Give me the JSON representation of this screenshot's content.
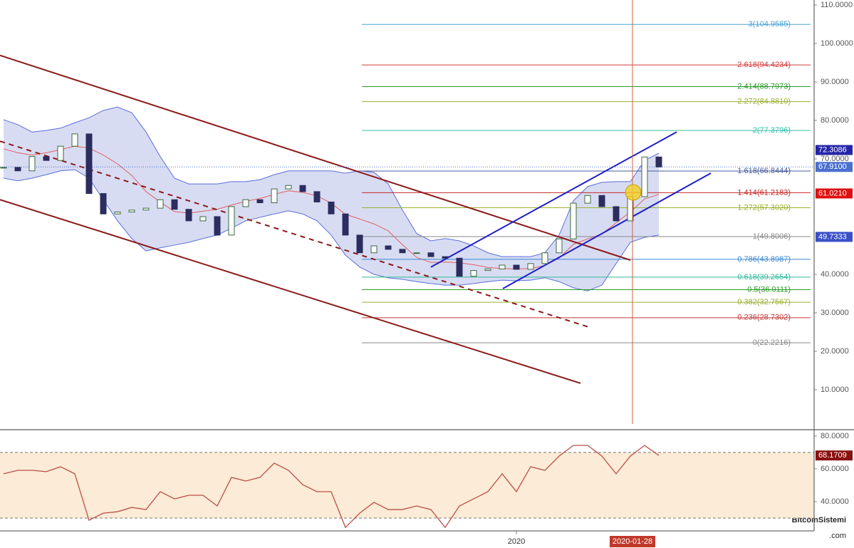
{
  "chart_data": [
    {
      "type": "candlestick",
      "xlim": [
        -0.25,
        56.9
      ],
      "xticks": [
        {
          "value": 36,
          "label": "2020"
        },
        {
          "value": 44.15,
          "label": "2020-01-28"
        }
      ],
      "ylim": [
        1.1,
        111.3
      ],
      "yticks": [
        {
          "value": 110,
          "label": "110.0000"
        },
        {
          "value": 100,
          "label": "100.0000"
        },
        {
          "value": 90,
          "label": "90.0000"
        },
        {
          "value": 80,
          "label": "80.0000"
        },
        {
          "value": 70,
          "label": "70.0000"
        },
        {
          "value": 40,
          "label": "40.0000"
        },
        {
          "value": 30,
          "label": "30.0000"
        },
        {
          "value": 20,
          "label": "20.0000"
        },
        {
          "value": 10,
          "label": "10.0000"
        }
      ],
      "up_color": "#ffffff",
      "down_color": "#2b2d5e",
      "candle_edge": "#3a6a3a",
      "closes": [
        67.8,
        66.9,
        70.6,
        69.6,
        73.3,
        76.5,
        61,
        55.7,
        56.2,
        56.7,
        57.2,
        59.4,
        56.9,
        53.9,
        55,
        50.2,
        57.6,
        59.4,
        58.6,
        62.2,
        63.1,
        61.5,
        58.8,
        55.7,
        50.2,
        45.6,
        47.4,
        46.5,
        45.6,
        45.6,
        44.6,
        44.2,
        39.5,
        41,
        41.4,
        42.4,
        41.3,
        42.8,
        45.6,
        49.2,
        58.5,
        60.5,
        57.6,
        53.9,
        60.2,
        70.5,
        67.91
      ],
      "bands": {
        "color": "#5a6fd8",
        "fill": "#c8cdee",
        "upper": [
          80.2,
          78.9,
          77,
          77.4,
          78,
          79.4,
          80.7,
          82.6,
          83.5,
          82,
          77,
          70.6,
          65,
          63.5,
          63.5,
          63.5,
          64.1,
          64.1,
          64.6,
          65.9,
          66.9,
          66.9,
          66.9,
          66.9,
          66.3,
          66.9,
          66.5,
          63.5,
          56.7,
          50.6,
          48.7,
          49.3,
          48.7,
          47.4,
          45.6,
          44.6,
          44.6,
          44.6,
          45.6,
          50.2,
          59.1,
          62.8,
          63.9,
          64.1,
          64.1,
          69.6,
          71.5
        ],
        "lower": [
          65,
          64.3,
          65,
          65.9,
          66.9,
          67.2,
          65,
          59.4,
          53.9,
          49.3,
          46.1,
          46.9,
          47.6,
          48.3,
          49.3,
          50.2,
          52,
          53.9,
          54.8,
          55.7,
          56.5,
          55.7,
          53.9,
          50.2,
          45,
          41.9,
          40,
          39.1,
          38.7,
          38.1,
          37.6,
          37.2,
          37.2,
          37.6,
          38.1,
          38.5,
          38.3,
          38.5,
          39.1,
          38.1,
          36.5,
          35.7,
          37.2,
          42.8,
          48.3,
          49.6,
          50.2
        ]
      },
      "ma": {
        "color": "#e06060",
        "values": [
          72.6,
          71.6,
          71,
          71.6,
          72.4,
          73.3,
          72.8,
          71,
          68.7,
          65.7,
          61.5,
          58.8,
          56.3,
          55.9,
          56.4,
          56.9,
          58,
          59,
          59.7,
          60.8,
          61.7,
          61.3,
          60.4,
          58.5,
          55.6,
          54.4,
          53.1,
          51.3,
          47.7,
          44.4,
          43.1,
          43.2,
          43,
          42.5,
          41.8,
          41.5,
          41.4,
          41.5,
          42.3,
          44.2,
          47.8,
          49.2,
          50.5,
          53.4,
          56.2,
          59.6,
          60.8
        ]
      },
      "trendlines": [
        {
          "from": [
            -0.25,
            96.9
          ],
          "to": [
            44,
            43.7
          ],
          "color": "#8b1a1a",
          "dashed": false
        },
        {
          "from": [
            -0.25,
            59.4
          ],
          "to": [
            40.5,
            11.7
          ],
          "color": "#8b1a1a",
          "dashed": false
        },
        {
          "from": [
            -0.25,
            74.6
          ],
          "to": [
            41.25,
            26.1
          ],
          "color": "#8b1a1a",
          "dashed": true
        },
        {
          "from": [
            30,
            41.9
          ],
          "to": [
            47.25,
            77
          ],
          "color": "#1f1fc8",
          "dashed": false
        },
        {
          "from": [
            35.05,
            36.3
          ],
          "to": [
            49.65,
            66.3
          ],
          "color": "#1f1fc8",
          "dashed": false
        }
      ],
      "fib_levels": [
        {
          "value": 104.9585,
          "label": "3(104.9585)",
          "color": "#4aa3d6"
        },
        {
          "value": 94.4234,
          "label": "2.618(94.4234)",
          "color": "#d83a3a"
        },
        {
          "value": 88.7973,
          "label": "2.414(88.7973)",
          "color": "#2a9a2a"
        },
        {
          "value": 84.881,
          "label": "2.272(84.8810)",
          "color": "#9ab030"
        },
        {
          "value": 77.3796,
          "label": "2(77.3796)",
          "color": "#30c0a8"
        },
        {
          "value": 66.8444,
          "label": "1.618(66.8444)",
          "color": "#4a5a9a"
        },
        {
          "value": 61.2183,
          "label": "1.414(61.2183)",
          "color": "#c82828"
        },
        {
          "value": 57.302,
          "label": "1.272(57.3020)",
          "color": "#9ab030"
        },
        {
          "value": 49.8006,
          "label": "1(49.8006)",
          "color": "#888888"
        },
        {
          "value": 43.8987,
          "label": "0.786(43.8987)",
          "color": "#3a88d0"
        },
        {
          "value": 39.2654,
          "label": "0.618(39.2654)",
          "color": "#30b898"
        },
        {
          "value": 36.0111,
          "label": "0.5(36.0111)",
          "color": "#2a9a2a"
        },
        {
          "value": 32.7567,
          "label": "0.382(32.7567)",
          "color": "#9ab030"
        },
        {
          "value": 28.7302,
          "label": "0.236(28.7302)",
          "color": "#c83838"
        },
        {
          "value": 22.2216,
          "label": "0(22.2216)",
          "color": "#888888"
        }
      ],
      "price_markers": [
        {
          "value": 72.3086,
          "label": "72.3086",
          "color": "#2424a8"
        },
        {
          "value": 67.91,
          "label": "67.9100",
          "color": "#4a6fd0"
        },
        {
          "value": 61.021,
          "label": "61.0210",
          "color": "#e01010"
        },
        {
          "value": 49.7333,
          "label": "49.7333",
          "color": "#3a50c8"
        }
      ],
      "current_line_color": "#4a6fd0",
      "date_line_color": "#d06040",
      "watermark": "BitcoinSistemi",
      "watermark_sub": ".com"
    },
    {
      "type": "line",
      "ylim": [
        22.2,
        83
      ],
      "yticks": [
        {
          "value": 80,
          "label": "80.0000"
        },
        {
          "value": 60,
          "label": "60.0000"
        },
        {
          "value": 40,
          "label": "40.0000"
        }
      ],
      "bands": [
        70,
        30
      ],
      "band_fill": "#fcebd6",
      "color": "#b8504a",
      "values": [
        57,
        59.1,
        59.1,
        58.3,
        61.3,
        57,
        28.7,
        33,
        33.9,
        36.5,
        35.2,
        46.1,
        41.7,
        43.9,
        43.9,
        37.4,
        54.8,
        52.6,
        54.8,
        63.5,
        59.1,
        50.4,
        46.1,
        46.1,
        24.3,
        33,
        39.6,
        35.2,
        35.2,
        37.4,
        35.2,
        24.3,
        37.4,
        41.7,
        46.1,
        57,
        46.1,
        61.3,
        59.1,
        67.8,
        74.3,
        74.3,
        67.8,
        57,
        67.8,
        74.3,
        68.17
      ],
      "marker": {
        "value": 68.1709,
        "label": "68.1709",
        "color": "#8b1010"
      }
    }
  ]
}
